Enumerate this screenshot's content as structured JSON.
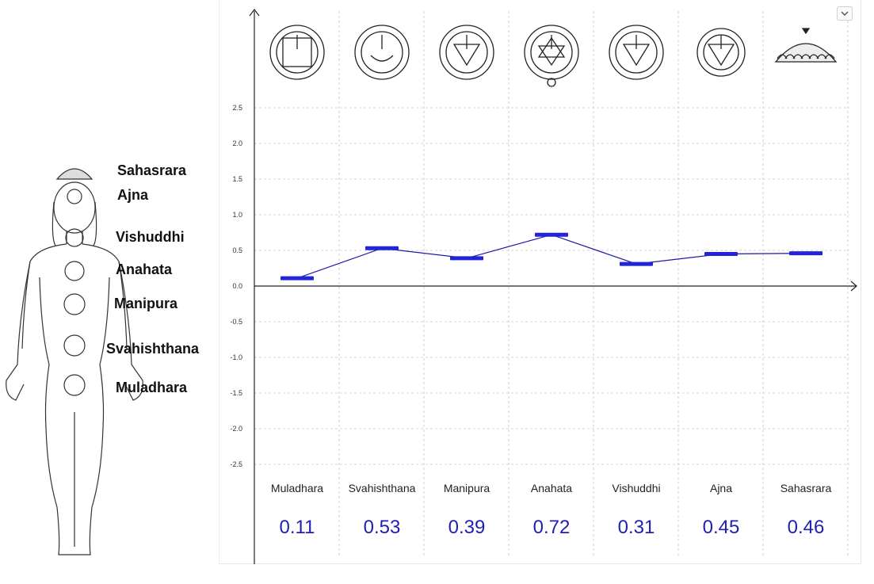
{
  "figure_labels": [
    "Sahasrara",
    "Ajna",
    "Vishuddhi",
    "Anahata",
    "Manipura",
    "Svahishthana",
    "Muladhara"
  ],
  "chart_data": {
    "type": "line",
    "categories": [
      "Muladhara",
      "Svahishthana",
      "Manipura",
      "Anahata",
      "Vishuddhi",
      "Ajna",
      "Sahasrara"
    ],
    "values": [
      0.11,
      0.53,
      0.39,
      0.72,
      0.31,
      0.45,
      0.46
    ],
    "value_labels": [
      "0.11",
      "0.53",
      "0.39",
      "0.72",
      "0.31",
      "0.45",
      "0.46"
    ],
    "y_ticks": [
      "2.5",
      "2.0",
      "1.5",
      "1.0",
      "0.5",
      "0.0",
      "-0.5",
      "-1.0",
      "-1.5",
      "-2.0",
      "-2.5"
    ],
    "ylim": [
      -2.5,
      2.5
    ],
    "grid": true,
    "line_color": "#1a1aa6",
    "marker_color": "#2323d8",
    "value_color": "#1f1fb0"
  },
  "icons": [
    "muladhara-symbol-icon",
    "svadhisthana-symbol-icon",
    "manipura-symbol-icon",
    "anahata-symbol-icon",
    "vishuddha-symbol-icon",
    "ajna-symbol-icon",
    "sahasrara-symbol-icon"
  ],
  "controls": {
    "menu_icon": "chevron-down-icon"
  }
}
